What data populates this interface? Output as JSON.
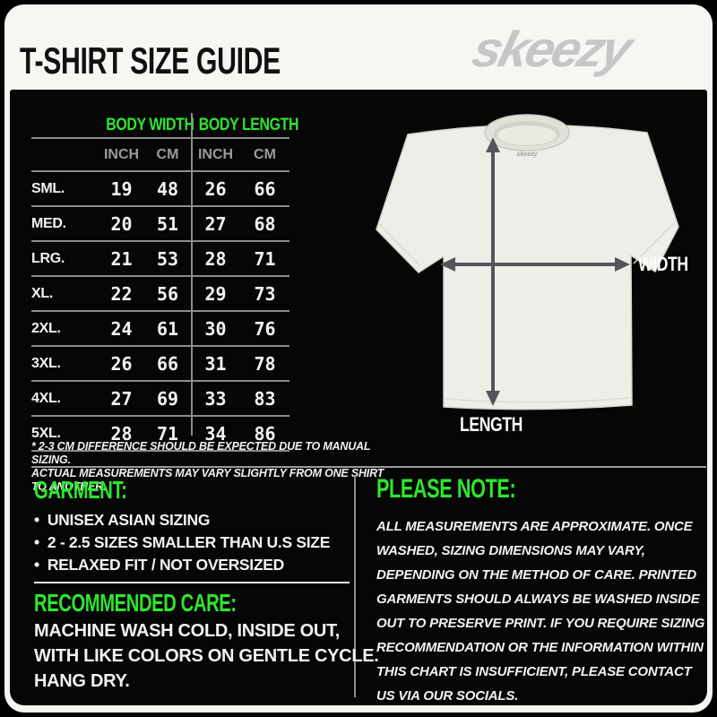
{
  "page": {
    "title": "T-SHIRT SIZE GUIDE",
    "brand_logo": "skeezy"
  },
  "colors": {
    "accent_green": "#2ee62e",
    "background_black": "#060606",
    "header_white": "#f6f6f3",
    "text_white": "#f2f2f2",
    "muted_gray": "#9a9a9a",
    "line_gray": "#8c8c8c",
    "logo_gray": "#c6c6c6",
    "arrow_gray": "#55565a",
    "shirt_fill": "#edeee8"
  },
  "size_table": {
    "group_headers": [
      "BODY WIDTH",
      "BODY LENGTH"
    ],
    "sub_headers": [
      "INCH",
      "CM",
      "INCH",
      "CM"
    ],
    "rows": [
      {
        "size": "SML.",
        "values": [
          19,
          48,
          26,
          66
        ]
      },
      {
        "size": "MED.",
        "values": [
          20,
          51,
          27,
          68
        ]
      },
      {
        "size": "LRG.",
        "values": [
          21,
          53,
          28,
          71
        ]
      },
      {
        "size": "XL.",
        "values": [
          22,
          56,
          29,
          73
        ]
      },
      {
        "size": "2XL.",
        "values": [
          24,
          61,
          30,
          76
        ]
      },
      {
        "size": "3XL.",
        "values": [
          26,
          66,
          31,
          78
        ]
      },
      {
        "size": "4XL.",
        "values": [
          27,
          69,
          33,
          83
        ]
      },
      {
        "size": "5XL.",
        "values": [
          28,
          71,
          34,
          86
        ]
      }
    ]
  },
  "footnote": "* 2-3 CM DIFFERENCE SHOULD BE EXPECTED DUE TO MANUAL SIZING.\nACTUAL MEASUREMENTS MAY VARY SLIGHTLY FROM ONE SHIRT TO ANOTHER.",
  "diagram": {
    "width_label": "WIDTH",
    "length_label": "LENGTH"
  },
  "garment": {
    "heading": "GARMENT:",
    "bullets": [
      "UNISEX ASIAN SIZING",
      "2 - 2.5 SIZES SMALLER THAN U.S SIZE",
      "RELAXED FIT / NOT OVERSIZED"
    ]
  },
  "care": {
    "heading": "RECOMMENDED CARE:",
    "text": "MACHINE WASH COLD, INSIDE OUT,\nWITH LIKE COLORS ON GENTLE CYCLE.\nHANG DRY."
  },
  "note": {
    "heading": "PLEASE NOTE:",
    "text": "ALL MEASUREMENTS ARE APPROXIMATE. ONCE  WASHED, SIZING DIMENSIONS MAY VARY, DEPENDING ON THE METHOD OF CARE. PRINTED GARMENTS SHOULD ALWAYS BE WASHED INSIDE OUT TO PRESERVE PRINT.  IF YOU REQUIRE SIZING  RECOMMENDATION OR THE INFORMATION WITHIN THIS CHART IS INSUFFICIENT, PLEASE CONTACT US VIA OUR SOCIALS."
  }
}
